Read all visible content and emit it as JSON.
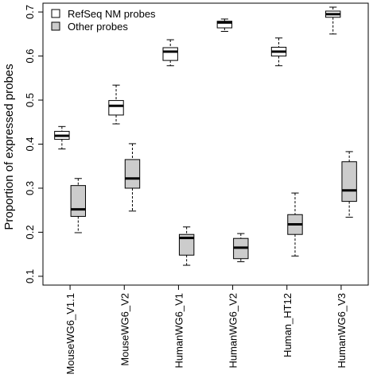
{
  "chart_data": {
    "type": "boxplot",
    "ylabel": "Proportion of expressed probes",
    "ylim": [
      0.08,
      0.72
    ],
    "yticks": [
      "0.1",
      "0.2",
      "0.3",
      "0.4",
      "0.5",
      "0.6",
      "0.7"
    ],
    "categories": [
      "MouseWG6_V1.1",
      "MouseWG6_V2",
      "HumanWG6_V1",
      "HumanWG6_V2",
      "Human_HT12",
      "HumanWG6_V3"
    ],
    "legend_position": "top-left",
    "colors": {
      "refseq": "#ffffff",
      "other": "#cccccc",
      "stroke": "#000000"
    },
    "series": [
      {
        "name": "RefSeq NM probes",
        "boxes": [
          {
            "min": 0.389,
            "q1": 0.411,
            "median": 0.419,
            "q3": 0.429,
            "max": 0.44
          },
          {
            "min": 0.446,
            "q1": 0.466,
            "median": 0.487,
            "q3": 0.499,
            "max": 0.534
          },
          {
            "min": 0.578,
            "q1": 0.59,
            "median": 0.61,
            "q3": 0.619,
            "max": 0.637
          },
          {
            "min": 0.656,
            "q1": 0.664,
            "median": 0.676,
            "q3": 0.679,
            "max": 0.684
          },
          {
            "min": 0.578,
            "q1": 0.6,
            "median": 0.61,
            "q3": 0.62,
            "max": 0.641
          },
          {
            "min": 0.65,
            "q1": 0.688,
            "median": 0.695,
            "q3": 0.702,
            "max": 0.711
          }
        ]
      },
      {
        "name": "Other probes",
        "boxes": [
          {
            "min": 0.199,
            "q1": 0.236,
            "median": 0.252,
            "q3": 0.306,
            "max": 0.322
          },
          {
            "min": 0.248,
            "q1": 0.3,
            "median": 0.322,
            "q3": 0.365,
            "max": 0.401
          },
          {
            "min": 0.125,
            "q1": 0.148,
            "median": 0.187,
            "q3": 0.195,
            "max": 0.212
          },
          {
            "min": 0.133,
            "q1": 0.14,
            "median": 0.165,
            "q3": 0.186,
            "max": 0.197
          },
          {
            "min": 0.146,
            "q1": 0.195,
            "median": 0.218,
            "q3": 0.24,
            "max": 0.289
          },
          {
            "min": 0.234,
            "q1": 0.27,
            "median": 0.295,
            "q3": 0.36,
            "max": 0.383
          }
        ]
      }
    ]
  }
}
